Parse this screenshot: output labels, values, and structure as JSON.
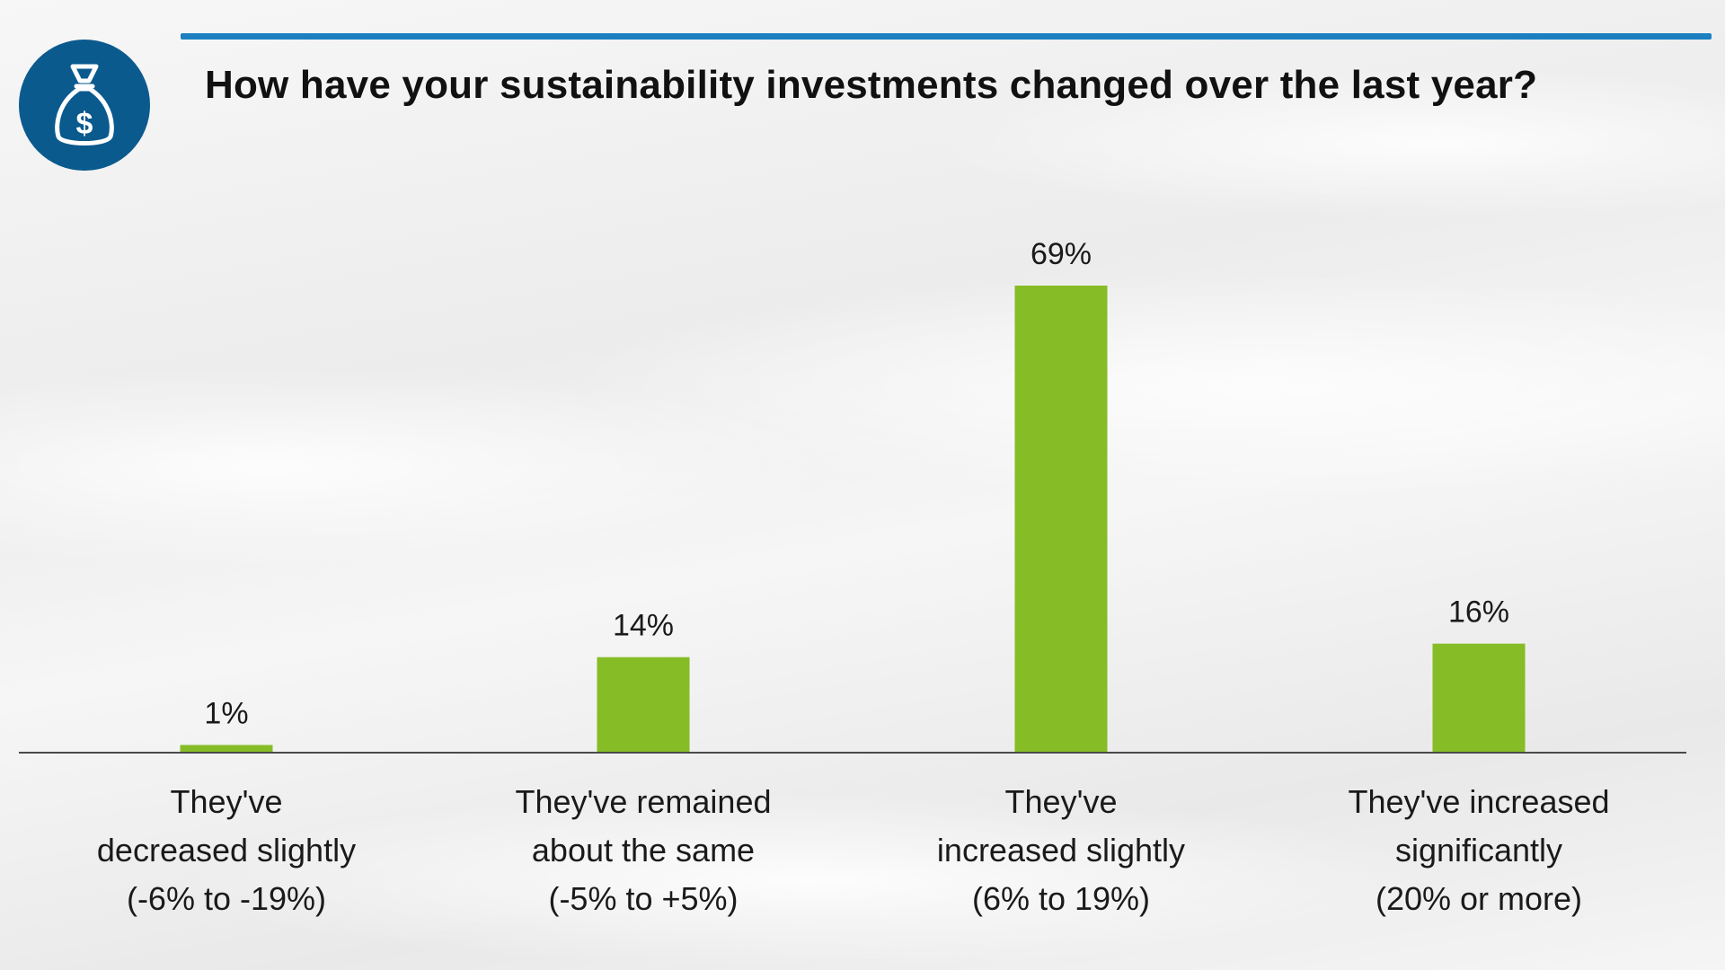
{
  "header": {
    "title": "How have your sustainability investments changed over the last year?",
    "icon": "money-bag-icon",
    "icon_symbol": "$",
    "accent_color": "#1c7fc0",
    "icon_color": "#0a5a8e"
  },
  "chart_data": {
    "type": "bar",
    "title": "How have your sustainability investments changed over the last year?",
    "categories": [
      [
        "They've",
        "decreased slightly",
        "(-6% to -19%)"
      ],
      [
        "They've remained",
        "about the same",
        "(-5% to +5%)"
      ],
      [
        "They've",
        "increased slightly",
        "(6% to 19%)"
      ],
      [
        "They've increased",
        "significantly",
        "(20% or more)"
      ]
    ],
    "values": [
      1,
      14,
      69,
      16
    ],
    "data_labels": [
      "1%",
      "14%",
      "69%",
      "16%"
    ],
    "bar_color": "#86bc25",
    "ylim": [
      0,
      69
    ],
    "grid": false,
    "legend": "none"
  }
}
